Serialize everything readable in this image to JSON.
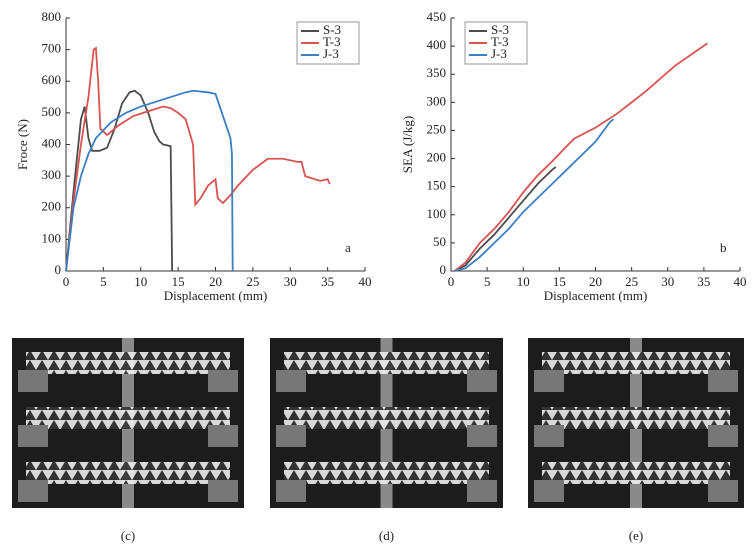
{
  "chart_data": [
    {
      "type": "line",
      "annotation": "a",
      "x_label": "Displacement (mm)",
      "y_label": "Froce (N)",
      "xlim": [
        0,
        40
      ],
      "xticks": [
        0,
        5,
        10,
        15,
        20,
        25,
        30,
        35,
        40
      ],
      "ylim": [
        0,
        800
      ],
      "yticks": [
        0,
        100,
        200,
        300,
        400,
        500,
        600,
        700,
        800
      ],
      "legend": "upper right",
      "series": [
        {
          "name": "S-3",
          "color": "#4d4d4d",
          "x": [
            0,
            1,
            2,
            2.5,
            3,
            3.5,
            4.5,
            5.5,
            6.5,
            7.5,
            8.5,
            9.2,
            10,
            11,
            11.8,
            12.5,
            13,
            14,
            14.2
          ],
          "values": [
            0,
            250,
            480,
            520,
            420,
            380,
            380,
            390,
            450,
            530,
            565,
            570,
            555,
            500,
            440,
            410,
            400,
            395,
            0
          ]
        },
        {
          "name": "T-3",
          "color": "#d9534f",
          "x": [
            0,
            1,
            2,
            3,
            3.7,
            4,
            4.3,
            4.6,
            5.5,
            7,
            9,
            11,
            13,
            14,
            15,
            16,
            17,
            17.3,
            18,
            19,
            20,
            20.3,
            21,
            22,
            23,
            25,
            27,
            29,
            31,
            31.5,
            32,
            34,
            35,
            35.3
          ],
          "values": [
            0,
            220,
            400,
            550,
            700,
            705,
            600,
            450,
            430,
            460,
            490,
            505,
            520,
            515,
            500,
            480,
            400,
            210,
            230,
            270,
            290,
            230,
            215,
            240,
            270,
            320,
            355,
            355,
            345,
            345,
            300,
            285,
            290,
            275
          ]
        },
        {
          "name": "J-3",
          "color": "#3a7fc4",
          "x": [
            0,
            1,
            2,
            3,
            4,
            6,
            8,
            10,
            12,
            14,
            16,
            17,
            19,
            20,
            21,
            22,
            22.2,
            22.3
          ],
          "values": [
            0,
            200,
            300,
            370,
            420,
            470,
            500,
            520,
            535,
            550,
            565,
            570,
            565,
            560,
            490,
            420,
            370,
            0
          ]
        }
      ]
    },
    {
      "type": "line",
      "annotation": "b",
      "x_label": "Displacement (mm)",
      "y_label": "SEA (J/kg)",
      "xlim": [
        0,
        40
      ],
      "xticks": [
        0,
        5,
        10,
        15,
        20,
        25,
        30,
        35,
        40
      ],
      "ylim": [
        0,
        450
      ],
      "yticks": [
        0,
        50,
        100,
        150,
        200,
        250,
        300,
        350,
        400,
        450
      ],
      "legend": "upper left",
      "series": [
        {
          "name": "S-3",
          "color": "#4d4d4d",
          "x": [
            0.5,
            2,
            4,
            6,
            8,
            10,
            12,
            14,
            14.5
          ],
          "values": [
            0,
            10,
            40,
            65,
            95,
            125,
            155,
            180,
            185
          ]
        },
        {
          "name": "T-3",
          "color": "#d9534f",
          "x": [
            0.5,
            2,
            4,
            6,
            8,
            10,
            12,
            14,
            17,
            20,
            23,
            27,
            31,
            35.5
          ],
          "values": [
            0,
            15,
            50,
            75,
            105,
            140,
            170,
            195,
            235,
            255,
            280,
            320,
            365,
            405
          ]
        },
        {
          "name": "J-3",
          "color": "#3a7fc4",
          "x": [
            0.5,
            2,
            4,
            6,
            8,
            10,
            12,
            14,
            16,
            18,
            20,
            22,
            22.5
          ],
          "values": [
            0,
            5,
            25,
            50,
            75,
            105,
            130,
            155,
            180,
            205,
            230,
            265,
            270
          ]
        }
      ]
    }
  ],
  "photos": [
    {
      "label": "(c)"
    },
    {
      "label": "(d)"
    },
    {
      "label": "(e)"
    }
  ]
}
